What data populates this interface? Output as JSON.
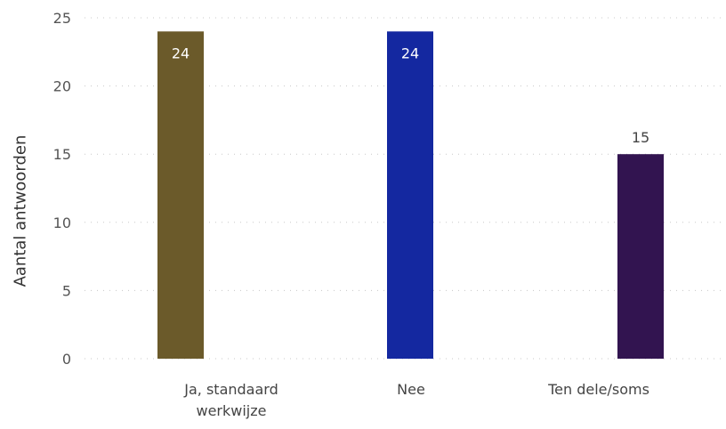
{
  "chart_data": {
    "type": "bar",
    "title": "",
    "xlabel": "",
    "ylabel": "Aantal antwoorden",
    "categories": [
      [
        "Ja, standaard",
        "werkwijze"
      ],
      [
        "Nee"
      ],
      [
        "Ten dele/soms"
      ]
    ],
    "values": [
      24,
      24,
      15
    ],
    "data_labels": [
      "24",
      "24",
      "15"
    ],
    "colors": [
      "#6b5a2a",
      "#1428a0",
      "#321450"
    ],
    "ylim": [
      0,
      25
    ],
    "yticks": [
      0,
      5,
      10,
      15,
      20,
      25
    ],
    "ytick_labels": [
      "0",
      "5",
      "10",
      "15",
      "20",
      "25"
    ],
    "grid": true,
    "legend": "none"
  }
}
